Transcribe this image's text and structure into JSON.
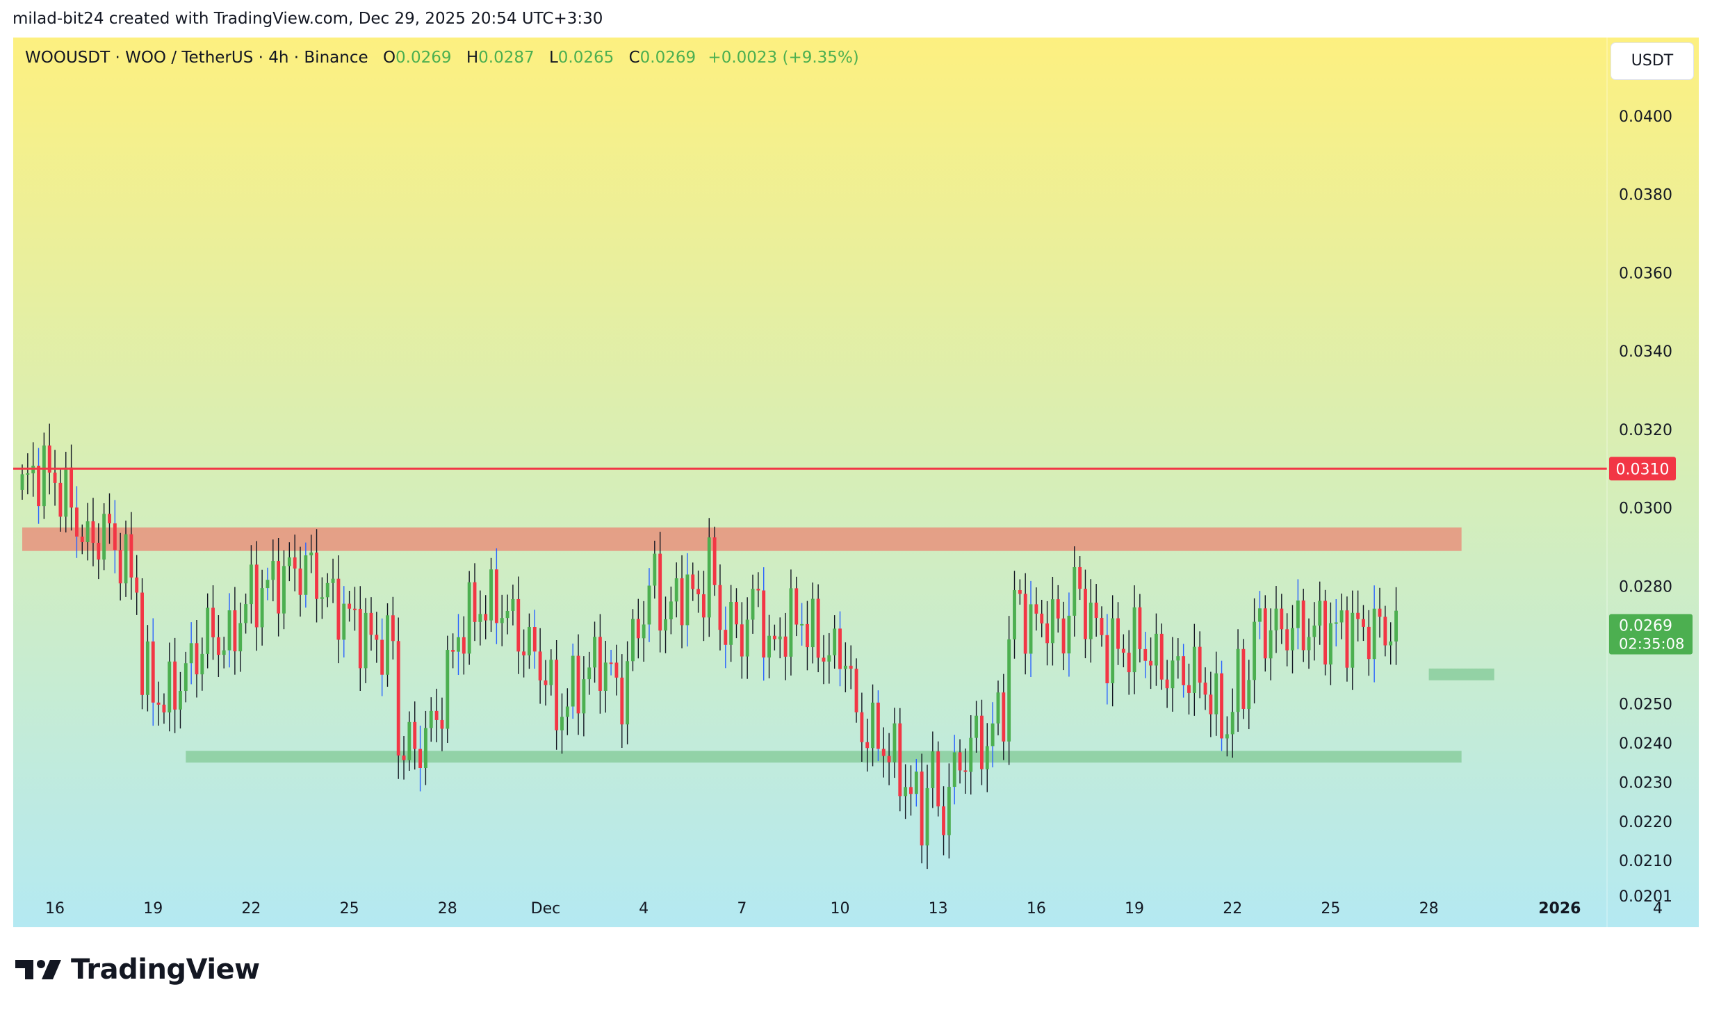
{
  "credit": "milad-bit24 created with TradingView.com, Dec 29, 2025 20:54 UTC+3:30",
  "symbol": {
    "title": "WOOUSDT · WOO / TetherUS · 4h · Binance",
    "o_label": "O",
    "o": "0.0269",
    "h_label": "H",
    "h": "0.0287",
    "l_label": "L",
    "l": "0.0265",
    "c_label": "C",
    "c": "0.0269",
    "change": "+0.0023 (+9.35%)"
  },
  "currency": "USDT",
  "brand": "TradingView",
  "colors": {
    "up": "#4caf50",
    "down": "#f23645",
    "resistance_line": "#f23645",
    "resistance_zone": "#e8927c",
    "support_zone": "#81c995"
  },
  "chart_data": {
    "type": "candlestick",
    "interval": "4h",
    "ylim": [
      0.0193,
      0.042
    ],
    "y_ticks": [
      "0.0400",
      "0.0380",
      "0.0360",
      "0.0340",
      "0.0320",
      "0.0300",
      "0.0280",
      "0.0250",
      "0.0240",
      "0.0230",
      "0.0220",
      "0.0210",
      "0.0201"
    ],
    "x_ticks": [
      "16",
      "19",
      "22",
      "25",
      "28",
      "Dec",
      "4",
      "7",
      "10",
      "13",
      "16",
      "19",
      "22",
      "25",
      "28",
      "2026",
      "4"
    ],
    "current_price": "0.0269",
    "countdown": "02:35:08",
    "horizontal_line": {
      "label": "0.0310",
      "value": 0.031
    },
    "zones": [
      {
        "name": "resistance",
        "from": 0.0289,
        "to": 0.0295,
        "start": "Nov 15",
        "end": "Dec 29"
      },
      {
        "name": "support",
        "from": 0.0235,
        "to": 0.0238,
        "start": "Nov 20",
        "end": "Dec 29"
      },
      {
        "name": "minor-support",
        "from": 0.0256,
        "to": 0.0259,
        "start": "Dec 28",
        "end": "Dec 30"
      }
    ],
    "path": [
      [
        0,
        0.0305
      ],
      [
        3,
        0.031
      ],
      [
        6,
        0.0307
      ],
      [
        9,
        0.03
      ],
      [
        12,
        0.029
      ],
      [
        15,
        0.0295
      ],
      [
        18,
        0.0288
      ],
      [
        21,
        0.028
      ],
      [
        22,
        0.0258
      ],
      [
        26,
        0.025
      ],
      [
        30,
        0.0258
      ],
      [
        34,
        0.0268
      ],
      [
        38,
        0.0265
      ],
      [
        41,
        0.0276
      ],
      [
        44,
        0.0279
      ],
      [
        48,
        0.0283
      ],
      [
        52,
        0.0285
      ],
      [
        56,
        0.0278
      ],
      [
        60,
        0.0272
      ],
      [
        64,
        0.0266
      ],
      [
        68,
        0.0265
      ],
      [
        69,
        0.024
      ],
      [
        72,
        0.0238
      ],
      [
        76,
        0.0246
      ],
      [
        80,
        0.0268
      ],
      [
        84,
        0.0275
      ],
      [
        88,
        0.0275
      ],
      [
        92,
        0.0266
      ],
      [
        96,
        0.0258
      ],
      [
        98,
        0.0247
      ],
      [
        102,
        0.0255
      ],
      [
        106,
        0.0262
      ],
      [
        110,
        0.0252
      ],
      [
        112,
        0.0266
      ],
      [
        116,
        0.0282
      ],
      [
        118,
        0.0271
      ],
      [
        121,
        0.028
      ],
      [
        124,
        0.0276
      ],
      [
        126,
        0.0286
      ],
      [
        128,
        0.0271
      ],
      [
        132,
        0.0268
      ],
      [
        135,
        0.0278
      ],
      [
        137,
        0.0262
      ],
      [
        140,
        0.027
      ],
      [
        143,
        0.0272
      ],
      [
        146,
        0.0265
      ],
      [
        149,
        0.0262
      ],
      [
        151,
        0.0264
      ],
      [
        153,
        0.0245
      ],
      [
        156,
        0.0242
      ],
      [
        159,
        0.0238
      ],
      [
        162,
        0.023
      ],
      [
        165,
        0.0222
      ],
      [
        167,
        0.0235
      ],
      [
        168,
        0.022
      ],
      [
        171,
        0.0232
      ],
      [
        174,
        0.024
      ],
      [
        177,
        0.024
      ],
      [
        180,
        0.025
      ],
      [
        182,
        0.0277
      ],
      [
        185,
        0.027
      ],
      [
        188,
        0.0272
      ],
      [
        191,
        0.0268
      ],
      [
        193,
        0.028
      ],
      [
        196,
        0.0272
      ],
      [
        199,
        0.0264
      ],
      [
        202,
        0.0264
      ],
      [
        205,
        0.0266
      ],
      [
        208,
        0.026
      ],
      [
        211,
        0.0258
      ],
      [
        214,
        0.0258
      ],
      [
        217,
        0.0255
      ],
      [
        219,
        0.0248
      ],
      [
        221,
        0.0244
      ],
      [
        223,
        0.0255
      ],
      [
        225,
        0.0257
      ],
      [
        226,
        0.0269
      ]
    ]
  }
}
